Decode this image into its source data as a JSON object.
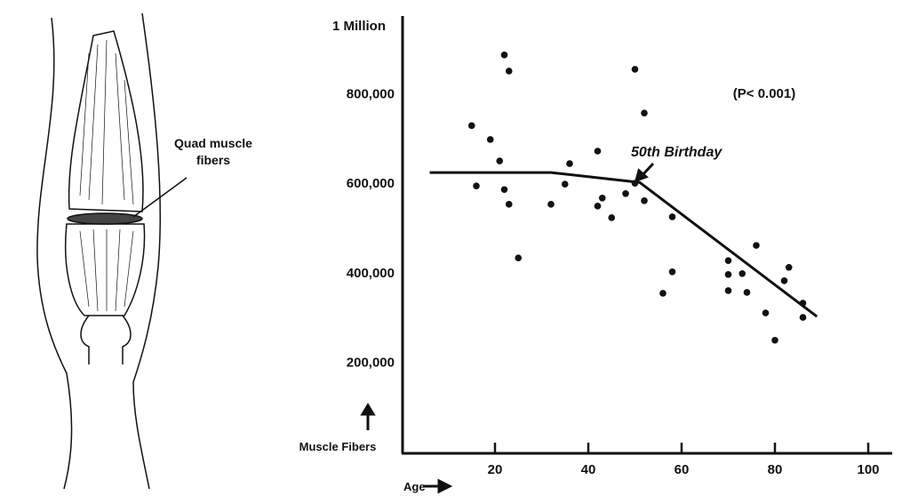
{
  "illustration": {
    "label_line1": "Quad muscle",
    "label_line2": "fibers"
  },
  "chart_data": {
    "type": "scatter",
    "title": "",
    "xlabel": "Age",
    "ylabel": "Muscle Fibers",
    "y_top_label": "1 Million",
    "xlim": [
      0,
      105
    ],
    "ylim": [
      0,
      1000000
    ],
    "xticks": [
      20,
      40,
      60,
      80,
      100
    ],
    "xtick_labels": [
      "20",
      "40",
      "60",
      "80",
      "100"
    ],
    "yticks": [
      200000,
      400000,
      600000,
      800000
    ],
    "ytick_labels": [
      "200,000",
      "400,000",
      "600,000",
      "800,000"
    ],
    "grid": false,
    "annotations": {
      "p_value": "(P< 0.001)",
      "birthday": "50th Birthday"
    },
    "points": [
      [
        15,
        727000
      ],
      [
        16,
        592000
      ],
      [
        19,
        696000
      ],
      [
        21,
        648000
      ],
      [
        22,
        885000
      ],
      [
        23,
        849000
      ],
      [
        22,
        584000
      ],
      [
        23,
        551000
      ],
      [
        25,
        431000
      ],
      [
        32,
        551000
      ],
      [
        35,
        596000
      ],
      [
        36,
        642000
      ],
      [
        42,
        670000
      ],
      [
        42,
        547000
      ],
      [
        43,
        565000
      ],
      [
        45,
        521000
      ],
      [
        48,
        575000
      ],
      [
        50,
        853000
      ],
      [
        50,
        598000
      ],
      [
        52,
        755000
      ],
      [
        52,
        559000
      ],
      [
        58,
        523000
      ],
      [
        58,
        400000
      ],
      [
        56,
        352000
      ],
      [
        70,
        425000
      ],
      [
        70,
        394000
      ],
      [
        70,
        358000
      ],
      [
        73,
        396000
      ],
      [
        74,
        354000
      ],
      [
        76,
        459000
      ],
      [
        78,
        308000
      ],
      [
        80,
        247000
      ],
      [
        82,
        380000
      ],
      [
        83,
        410000
      ],
      [
        86,
        330000
      ],
      [
        86,
        298000
      ]
    ],
    "trend_line": [
      [
        6,
        622000
      ],
      [
        32,
        622000
      ],
      [
        51,
        600000
      ],
      [
        89,
        300000
      ]
    ],
    "colors": {
      "ink": "#111111"
    }
  }
}
